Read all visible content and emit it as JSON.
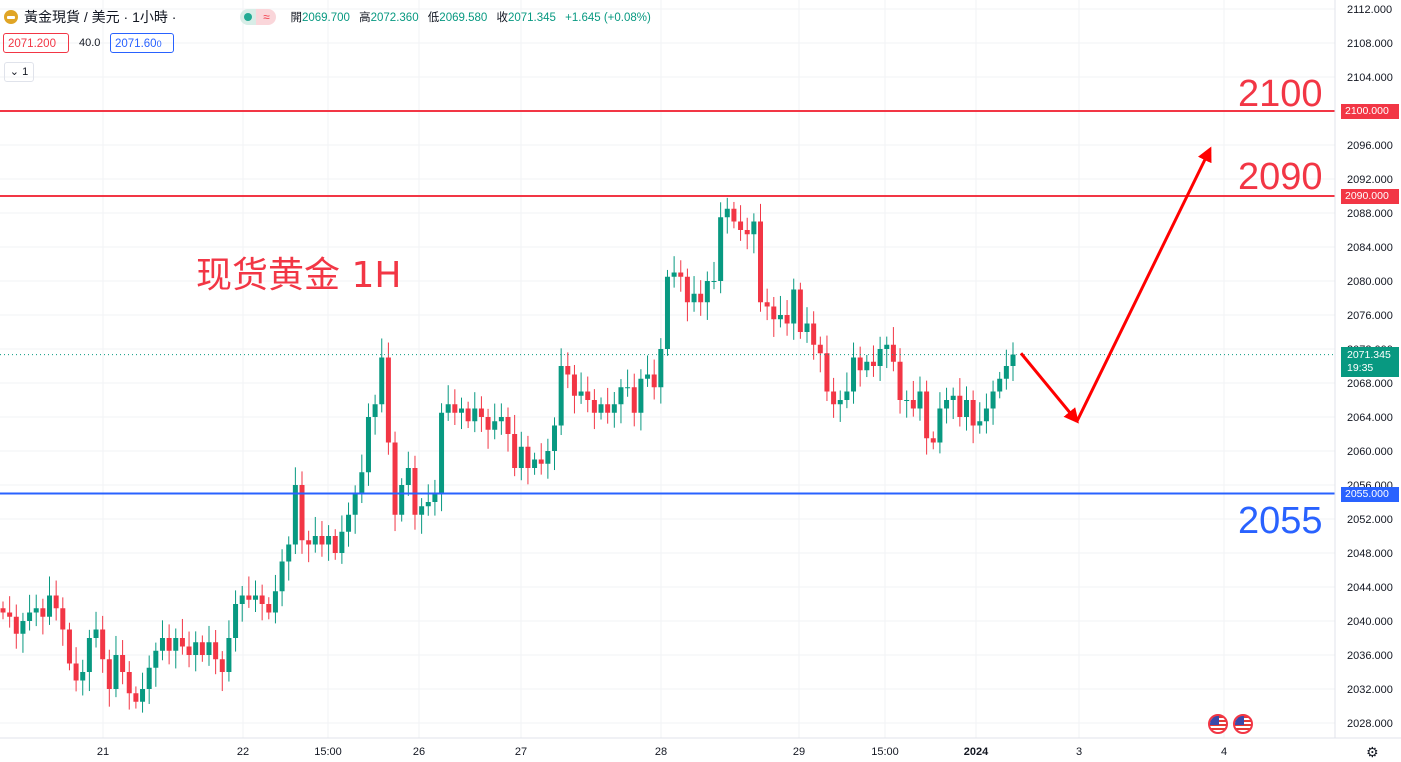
{
  "header": {
    "symbol": "黃金現貨",
    "separator1": "/",
    "currency_interval": "美元 · 1小時 ·",
    "ohlc": {
      "open_label": "開",
      "open": "2069.700",
      "high_label": "高",
      "high": "2072.360",
      "low_label": "低",
      "low": "2069.580",
      "close_label": "收",
      "close": "2071.345",
      "change": "+1.645 (+0.08%)"
    }
  },
  "trade": {
    "sell": "2071.200",
    "spread": "40.0",
    "buy": "2071.60",
    "buy_suffix": "0"
  },
  "indicator_toggle": "1",
  "annotations": {
    "title": "现货黄金 1H",
    "level_2100": "2100",
    "level_2090": "2090",
    "level_2055": "2055"
  },
  "price_tags": {
    "tag_2100": "2100.000",
    "tag_2090": "2090.000",
    "tag_2055": "2055.000",
    "last_price": "2071.345",
    "countdown": "19:35"
  },
  "colors": {
    "up": "#089981",
    "down": "#f23645",
    "blue": "#2962ff",
    "icon_gold": "#e0a526"
  },
  "icons": [
    "gold-symbol-icon",
    "flag-us-icon",
    "settings-gear-icon"
  ],
  "chart_data": {
    "type": "candlestick",
    "title": "现货黄金 1H",
    "y_axis_ticks": [
      "2112.000",
      "2108.000",
      "2104.000",
      "2100.000",
      "2096.000",
      "2092.000",
      "2088.000",
      "2084.000",
      "2080.000",
      "2076.000",
      "2072.000",
      "2068.000",
      "2064.000",
      "2060.000",
      "2056.000",
      "2052.000",
      "2048.000",
      "2044.000",
      "2040.000",
      "2036.000",
      "2032.000",
      "2028.000"
    ],
    "x_axis_ticks": [
      "21",
      "22",
      "15:00",
      "26",
      "27",
      "28",
      "29",
      "15:00",
      "2024",
      "3",
      "4"
    ],
    "ylim": [
      2026.5,
      2113
    ],
    "horizontal_lines": [
      {
        "price": 2100,
        "color": "#f23645"
      },
      {
        "price": 2090,
        "color": "#f23645"
      },
      {
        "price": 2055,
        "color": "#2962ff"
      }
    ],
    "last_price": 2071.345,
    "arrows": [
      {
        "from": [
          1021,
          2071.5
        ],
        "to": [
          1077,
          2063.5
        ],
        "color": "#ff0000"
      },
      {
        "from": [
          1077,
          2063.5
        ],
        "to": [
          1210,
          2095.5
        ],
        "color": "#ff0000"
      }
    ],
    "closes": [
      2041,
      2040.5,
      2038.5,
      2040,
      2041,
      2041.5,
      2040.5,
      2043,
      2041.5,
      2039,
      2035,
      2033,
      2034,
      2038,
      2039,
      2035.5,
      2032,
      2036,
      2034,
      2031.5,
      2030.5,
      2032,
      2034.5,
      2036.5,
      2038,
      2036.5,
      2038,
      2037,
      2036,
      2037.5,
      2036,
      2037.5,
      2035.5,
      2034,
      2038,
      2042,
      2043,
      2042.5,
      2043,
      2042,
      2041,
      2043.5,
      2047,
      2049,
      2056,
      2049.5,
      2049,
      2050,
      2049,
      2050,
      2048,
      2050.5,
      2052.5,
      2055,
      2057.5,
      2064,
      2065.5,
      2071,
      2061,
      2052.5,
      2056,
      2058,
      2052.5,
      2053.5,
      2054,
      2055,
      2064.5,
      2065.5,
      2064.5,
      2065,
      2063.5,
      2065,
      2064,
      2062.5,
      2063.5,
      2064,
      2062,
      2058,
      2060.5,
      2058,
      2059,
      2058.5,
      2060,
      2063,
      2070,
      2069,
      2066.5,
      2067,
      2066,
      2064.5,
      2065.5,
      2064.5,
      2065.5,
      2067.5,
      2067.5,
      2064.5,
      2068.5,
      2069,
      2067.5,
      2072,
      2080.5,
      2081,
      2080.5,
      2077.5,
      2078.5,
      2077.5,
      2080,
      2080,
      2087.5,
      2088.5,
      2087,
      2086,
      2085.5,
      2087,
      2077.5,
      2077,
      2075.5,
      2076,
      2075,
      2079,
      2074,
      2075,
      2072.5,
      2071.5,
      2067,
      2065.5,
      2066,
      2067,
      2071,
      2069.5,
      2070.5,
      2070,
      2072,
      2072.5,
      2070.5,
      2066,
      2066,
      2065,
      2067,
      2061.5,
      2061,
      2065,
      2066,
      2066.5,
      2064,
      2066,
      2063,
      2063.5,
      2065,
      2067,
      2068.5,
      2070,
      2071.345
    ]
  }
}
